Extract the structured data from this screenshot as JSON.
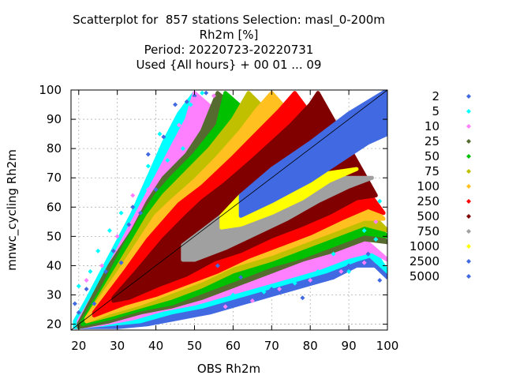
{
  "chart_data": {
    "type": "scatter",
    "title_lines": [
      "Scatterplot for  857 stations Selection: masl_0-200m",
      "Rh2m [%]",
      "Period: 20220723-20220731",
      "Used {All hours} + 00 01 ... 09"
    ],
    "xlabel": "OBS Rh2m",
    "ylabel": "mnwc_cycling Rh2m",
    "xlim": [
      18,
      100
    ],
    "ylim": [
      18,
      100
    ],
    "xticks": [
      20,
      30,
      40,
      50,
      60,
      70,
      80,
      90,
      100
    ],
    "yticks": [
      20,
      30,
      40,
      50,
      60,
      70,
      80,
      90,
      100
    ],
    "grid": true,
    "diagonal": [
      [
        18,
        18
      ],
      [
        100,
        100
      ]
    ],
    "legend_position": "right",
    "legend": [
      {
        "label": "2",
        "color": "#4169e1"
      },
      {
        "label": "5",
        "color": "#00ffff"
      },
      {
        "label": "10",
        "color": "#ff80ff"
      },
      {
        "label": "25",
        "color": "#556b2f"
      },
      {
        "label": "50",
        "color": "#00c000"
      },
      {
        "label": "75",
        "color": "#c0c000"
      },
      {
        "label": "100",
        "color": "#ffc020"
      },
      {
        "label": "250",
        "color": "#ff0000"
      },
      {
        "label": "500",
        "color": "#800000"
      },
      {
        "label": "750",
        "color": "#a0a0a0"
      },
      {
        "label": "1000",
        "color": "#ffff00"
      },
      {
        "label": "2500",
        "color": "#4169e1"
      },
      {
        "label": "5000",
        "color": "#4169e1"
      }
    ],
    "density_bands": [
      {
        "series": "5000",
        "color": "#4169e1",
        "upper": [
          [
            62,
            64
          ],
          [
            70,
            73
          ],
          [
            80,
            82
          ],
          [
            90,
            92
          ],
          [
            100,
            100
          ]
        ],
        "lower": [
          [
            100,
            85
          ],
          [
            95,
            82
          ],
          [
            88,
            76
          ],
          [
            80,
            69
          ],
          [
            70,
            62
          ],
          [
            62,
            57
          ]
        ]
      },
      {
        "series": "1000",
        "color": "#ffff00",
        "upper": [
          [
            57,
            57
          ],
          [
            62,
            64
          ],
          [
            66,
            68
          ]
        ],
        "lower": [
          [
            92,
            73
          ],
          [
            85,
            69
          ],
          [
            78,
            63
          ],
          [
            70,
            58
          ],
          [
            62,
            54
          ],
          [
            57,
            53
          ]
        ]
      },
      {
        "series": "750",
        "color": "#a0a0a0",
        "upper": [
          [
            47,
            47
          ],
          [
            52,
            52
          ],
          [
            57,
            57
          ],
          [
            62,
            64
          ],
          [
            66,
            68
          ],
          [
            68,
            70
          ]
        ],
        "lower": [
          [
            96,
            70
          ],
          [
            90,
            67
          ],
          [
            82,
            62
          ],
          [
            74,
            56
          ],
          [
            66,
            51
          ],
          [
            58,
            46
          ],
          [
            50,
            42
          ],
          [
            47,
            42
          ]
        ]
      },
      {
        "series": "500",
        "color": "#800000",
        "upper": [
          [
            29,
            29
          ],
          [
            35,
            38
          ],
          [
            42,
            49
          ],
          [
            48,
            57
          ],
          [
            52,
            62
          ],
          [
            58,
            68
          ],
          [
            65,
            76
          ],
          [
            70,
            82
          ],
          [
            75,
            88
          ],
          [
            80,
            95
          ],
          [
            82,
            99
          ]
        ],
        "lower": [
          [
            97,
            64
          ],
          [
            92,
            63
          ],
          [
            85,
            58
          ],
          [
            78,
            54
          ],
          [
            70,
            50
          ],
          [
            62,
            45
          ],
          [
            55,
            42
          ],
          [
            48,
            37
          ],
          [
            40,
            33
          ],
          [
            33,
            29
          ],
          [
            29,
            28
          ]
        ]
      },
      {
        "series": "250",
        "color": "#ff0000",
        "upper": [
          [
            24,
            24
          ],
          [
            32,
            38
          ],
          [
            38,
            49
          ],
          [
            42,
            55
          ],
          [
            46,
            61
          ],
          [
            52,
            67
          ],
          [
            60,
            77
          ],
          [
            66,
            85
          ],
          [
            72,
            93
          ],
          [
            76,
            99
          ]
        ],
        "lower": [
          [
            99,
            58
          ],
          [
            95,
            60
          ],
          [
            88,
            56
          ],
          [
            80,
            51
          ],
          [
            72,
            47
          ],
          [
            64,
            43
          ],
          [
            56,
            38
          ],
          [
            48,
            34
          ],
          [
            40,
            30
          ],
          [
            32,
            27
          ],
          [
            24,
            23
          ]
        ]
      },
      {
        "series": "100",
        "color": "#ffc020",
        "upper": [
          [
            22,
            22
          ],
          [
            30,
            37
          ],
          [
            36,
            49
          ],
          [
            40,
            57
          ],
          [
            44,
            62
          ],
          [
            50,
            69
          ],
          [
            56,
            77
          ],
          [
            62,
            86
          ],
          [
            66,
            93
          ],
          [
            70,
            99
          ]
        ],
        "lower": [
          [
            99,
            56
          ],
          [
            94,
            56
          ],
          [
            86,
            52
          ],
          [
            78,
            48
          ],
          [
            70,
            44
          ],
          [
            60,
            40
          ],
          [
            52,
            35
          ],
          [
            44,
            31
          ],
          [
            36,
            27
          ],
          [
            28,
            24
          ],
          [
            22,
            21
          ]
        ]
      },
      {
        "series": "75",
        "color": "#c0c000",
        "upper": [
          [
            22,
            22
          ],
          [
            28,
            35
          ],
          [
            34,
            48
          ],
          [
            38,
            57
          ],
          [
            42,
            64
          ],
          [
            48,
            72
          ],
          [
            54,
            80
          ],
          [
            60,
            90
          ],
          [
            64,
            99
          ]
        ],
        "lower": [
          [
            100,
            52
          ],
          [
            94,
            54
          ],
          [
            86,
            50
          ],
          [
            78,
            46
          ],
          [
            70,
            42
          ],
          [
            60,
            38
          ],
          [
            52,
            33
          ],
          [
            44,
            29
          ],
          [
            36,
            26
          ],
          [
            28,
            23
          ],
          [
            22,
            21
          ]
        ]
      },
      {
        "series": "50",
        "color": "#00c000",
        "upper": [
          [
            21,
            21
          ],
          [
            26,
            32
          ],
          [
            32,
            47
          ],
          [
            36,
            56
          ],
          [
            40,
            64
          ],
          [
            44,
            70
          ],
          [
            50,
            78
          ],
          [
            56,
            88
          ],
          [
            58,
            99
          ]
        ],
        "lower": [
          [
            100,
            50
          ],
          [
            94,
            51
          ],
          [
            86,
            47
          ],
          [
            78,
            43
          ],
          [
            70,
            40
          ],
          [
            60,
            35
          ],
          [
            52,
            31
          ],
          [
            44,
            27
          ],
          [
            36,
            25
          ],
          [
            28,
            22
          ],
          [
            21,
            20
          ]
        ]
      },
      {
        "series": "25",
        "color": "#556b2f",
        "upper": [
          [
            20,
            20
          ],
          [
            24,
            30
          ],
          [
            28,
            40
          ],
          [
            34,
            52
          ],
          [
            38,
            62
          ],
          [
            42,
            70
          ],
          [
            48,
            78
          ],
          [
            52,
            86
          ],
          [
            56,
            99
          ]
        ],
        "lower": [
          [
            100,
            48
          ],
          [
            94,
            49
          ],
          [
            86,
            45
          ],
          [
            78,
            42
          ],
          [
            70,
            38
          ],
          [
            60,
            33
          ],
          [
            52,
            29
          ],
          [
            44,
            26
          ],
          [
            36,
            24
          ],
          [
            28,
            21
          ],
          [
            20,
            19
          ]
        ]
      },
      {
        "series": "10",
        "color": "#ff80ff",
        "upper": [
          [
            20,
            21
          ],
          [
            24,
            30
          ],
          [
            28,
            40
          ],
          [
            32,
            50
          ],
          [
            36,
            60
          ],
          [
            40,
            70
          ],
          [
            44,
            80
          ],
          [
            48,
            90
          ],
          [
            50,
            99
          ]
        ],
        "lower": [
          [
            100,
            42
          ],
          [
            96,
            45
          ],
          [
            90,
            43
          ],
          [
            82,
            39
          ],
          [
            74,
            36
          ],
          [
            66,
            33
          ],
          [
            58,
            30
          ],
          [
            50,
            27
          ],
          [
            42,
            25
          ],
          [
            34,
            22
          ],
          [
            26,
            20
          ],
          [
            20,
            19
          ]
        ]
      },
      {
        "series": "5",
        "color": "#00ffff",
        "upper": [
          [
            19,
            21
          ],
          [
            22,
            28
          ],
          [
            26,
            38
          ],
          [
            30,
            48
          ],
          [
            34,
            58
          ],
          [
            38,
            70
          ],
          [
            42,
            82
          ],
          [
            46,
            92
          ],
          [
            50,
            99
          ]
        ],
        "lower": [
          [
            100,
            38
          ],
          [
            97,
            44
          ],
          [
            92,
            42
          ],
          [
            84,
            38
          ],
          [
            76,
            35
          ],
          [
            68,
            32
          ],
          [
            60,
            29
          ],
          [
            52,
            26
          ],
          [
            44,
            24
          ],
          [
            36,
            21
          ],
          [
            28,
            20
          ],
          [
            19,
            19
          ]
        ]
      },
      {
        "series": "2",
        "color": "#4169e1",
        "upper": [
          [
            19,
            20
          ],
          [
            22,
            26
          ],
          [
            26,
            36
          ],
          [
            30,
            46
          ],
          [
            34,
            58
          ],
          [
            38,
            70
          ],
          [
            42,
            80
          ],
          [
            46,
            90
          ],
          [
            50,
            99
          ]
        ],
        "lower": [
          [
            100,
            36
          ],
          [
            98,
            40
          ],
          [
            92,
            40
          ],
          [
            86,
            36
          ],
          [
            78,
            33
          ],
          [
            70,
            30
          ],
          [
            62,
            27
          ],
          [
            54,
            24
          ],
          [
            46,
            22
          ],
          [
            38,
            20
          ],
          [
            30,
            19
          ],
          [
            19,
            19
          ]
        ]
      }
    ],
    "scatter_points": [
      {
        "series": "2",
        "color": "#4169e1",
        "x": [
          19,
          20,
          22,
          24,
          27,
          29,
          31,
          33,
          34,
          36,
          38,
          40,
          42,
          45,
          48,
          50,
          53,
          56,
          62,
          70,
          78,
          86,
          90,
          95,
          98
        ],
        "y": [
          27,
          24,
          32,
          27,
          38,
          45,
          41,
          54,
          60,
          58,
          78,
          66,
          84,
          95,
          96,
          98,
          99,
          40,
          36,
          32,
          29,
          36,
          40,
          44,
          35
        ]
      },
      {
        "series": "5",
        "color": "#00ffff",
        "x": [
          20,
          23,
          25,
          28,
          31,
          35,
          38,
          41,
          43,
          45,
          47,
          49,
          52,
          60,
          68,
          76,
          82,
          86,
          90,
          94,
          97,
          98
        ],
        "y": [
          33,
          38,
          45,
          52,
          58,
          61,
          74,
          85,
          76,
          88,
          80,
          95,
          99,
          30,
          31,
          34,
          38,
          44,
          38,
          52,
          49,
          62
        ]
      },
      {
        "series": "10",
        "color": "#ff80ff",
        "x": [
          22,
          26,
          30,
          34,
          38,
          42,
          46,
          50,
          55,
          58,
          65,
          72,
          80,
          88,
          94,
          97
        ],
        "y": [
          35,
          40,
          50,
          64,
          66,
          73,
          88,
          97,
          98,
          26,
          28,
          32,
          35,
          38,
          41,
          55
        ]
      }
    ]
  }
}
